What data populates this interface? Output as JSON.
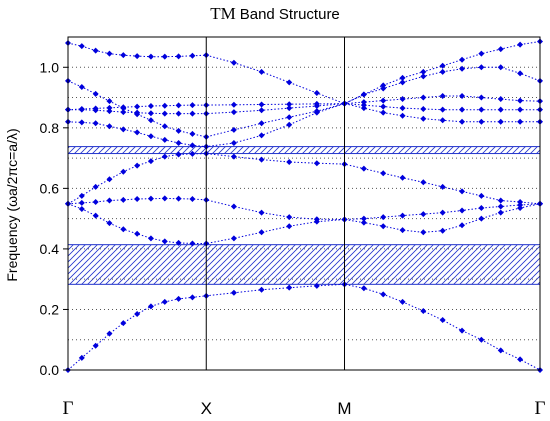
{
  "chart_data": {
    "type": "line",
    "title_prefix": "TM",
    "title": "Band Structure",
    "ylabel": "Frequency (ωa/2πc=a/λ)",
    "ylim": [
      0,
      1.1
    ],
    "yticks": [
      "0.0",
      "0.2",
      "0.4",
      "0.6",
      "0.8",
      "1.0"
    ],
    "ytick_values": [
      0,
      0.2,
      0.4,
      0.6,
      0.8,
      1.0
    ],
    "k_points": [
      "Γ",
      "X",
      "M",
      "Γ"
    ],
    "x_ticks": [
      0,
      10,
      20,
      34.14
    ],
    "grid": "dotted-horizontal",
    "band_color": "#0000dd",
    "gap_color": "#2233cc",
    "gaps": [
      {
        "lower": 0.283,
        "upper": 0.414
      },
      {
        "lower": 0.715,
        "upper": 0.738
      }
    ],
    "bands": [
      {
        "x": [
          0,
          1,
          2,
          3,
          4,
          5,
          6,
          7,
          8,
          9,
          10,
          12,
          14,
          16,
          18,
          20,
          21.4,
          22.8,
          24.2,
          25.7,
          27.1,
          28.5,
          29.9,
          31.3,
          32.7,
          34.14
        ],
        "y": [
          0,
          0.04,
          0.08,
          0.12,
          0.155,
          0.185,
          0.21,
          0.225,
          0.235,
          0.24,
          0.245,
          0.255,
          0.265,
          0.272,
          0.278,
          0.283,
          0.27,
          0.25,
          0.225,
          0.195,
          0.165,
          0.13,
          0.1,
          0.065,
          0.035,
          0
        ]
      },
      {
        "x": [
          0,
          1,
          2,
          3,
          4,
          5,
          6,
          7,
          8,
          9,
          10,
          12,
          14,
          16,
          18,
          20,
          21.4,
          22.8,
          24.2,
          25.7,
          27.1,
          28.5,
          29.9,
          31.3,
          32.7,
          34.14
        ],
        "y": [
          0.549,
          0.532,
          0.51,
          0.485,
          0.465,
          0.45,
          0.435,
          0.425,
          0.42,
          0.418,
          0.418,
          0.435,
          0.455,
          0.475,
          0.49,
          0.497,
          0.487,
          0.475,
          0.462,
          0.455,
          0.46,
          0.478,
          0.5,
          0.52,
          0.535,
          0.549
        ]
      },
      {
        "x": [
          0,
          1,
          2,
          3,
          4,
          5,
          6,
          7,
          8,
          9,
          10,
          12,
          14,
          16,
          18,
          20,
          21.4,
          22.8,
          24.2,
          25.7,
          27.1,
          28.5,
          29.9,
          31.3,
          32.7,
          34.14
        ],
        "y": [
          0.549,
          0.552,
          0.555,
          0.56,
          0.562,
          0.565,
          0.566,
          0.567,
          0.566,
          0.565,
          0.562,
          0.54,
          0.52,
          0.505,
          0.498,
          0.497,
          0.5,
          0.505,
          0.51,
          0.515,
          0.52,
          0.527,
          0.535,
          0.54,
          0.545,
          0.549
        ]
      },
      {
        "x": [
          0,
          1,
          2,
          3,
          4,
          5,
          6,
          7,
          8,
          9,
          10,
          12,
          14,
          16,
          18,
          20,
          21.4,
          22.8,
          24.2,
          25.7,
          27.1,
          28.5,
          29.9,
          31.3,
          32.7,
          34.14
        ],
        "y": [
          0.549,
          0.575,
          0.605,
          0.63,
          0.655,
          0.675,
          0.69,
          0.705,
          0.712,
          0.714,
          0.715,
          0.705,
          0.695,
          0.687,
          0.683,
          0.68,
          0.665,
          0.65,
          0.635,
          0.62,
          0.605,
          0.59,
          0.575,
          0.56,
          0.555,
          0.549
        ]
      },
      {
        "x": [
          0,
          1,
          2,
          3,
          4,
          5,
          6,
          7,
          8,
          9,
          10,
          12,
          14,
          16,
          18,
          20,
          21.4,
          22.8,
          24.2,
          25.7,
          27.1,
          28.5,
          29.9,
          31.3,
          32.7,
          34.14
        ],
        "y": [
          0.82,
          0.818,
          0.815,
          0.805,
          0.795,
          0.785,
          0.772,
          0.76,
          0.75,
          0.742,
          0.738,
          0.75,
          0.775,
          0.81,
          0.85,
          0.88,
          0.865,
          0.85,
          0.84,
          0.83,
          0.825,
          0.82,
          0.82,
          0.82,
          0.82,
          0.82
        ]
      },
      {
        "x": [
          0,
          1,
          2,
          3,
          4,
          5,
          6,
          7,
          8,
          9,
          10,
          12,
          14,
          16,
          18,
          20,
          21.4,
          22.8,
          24.2,
          25.7,
          27.1,
          28.5,
          29.9,
          31.3,
          32.7,
          34.14
        ],
        "y": [
          0.86,
          0.86,
          0.858,
          0.855,
          0.852,
          0.85,
          0.848,
          0.847,
          0.847,
          0.847,
          0.847,
          0.852,
          0.858,
          0.865,
          0.872,
          0.88,
          0.875,
          0.87,
          0.865,
          0.862,
          0.86,
          0.86,
          0.86,
          0.86,
          0.86,
          0.86
        ]
      },
      {
        "x": [
          0,
          1,
          2,
          3,
          4,
          5,
          6,
          7,
          8,
          9,
          10,
          12,
          14,
          16,
          18,
          20,
          21.4,
          22.8,
          24.2,
          25.7,
          27.1,
          28.5,
          29.9,
          31.3,
          32.7,
          34.14
        ],
        "y": [
          0.86,
          0.862,
          0.864,
          0.866,
          0.868,
          0.87,
          0.872,
          0.873,
          0.874,
          0.875,
          0.875,
          0.876,
          0.877,
          0.878,
          0.879,
          0.88,
          0.885,
          0.89,
          0.895,
          0.9,
          0.905,
          0.905,
          0.9,
          0.895,
          0.89,
          0.888
        ]
      },
      {
        "x": [
          0,
          1,
          2,
          3,
          4,
          5,
          6,
          7,
          8,
          9,
          10,
          12,
          14,
          16,
          18,
          20,
          21.4,
          22.8,
          24.2,
          25.7,
          27.1,
          28.5,
          29.9,
          31.3,
          32.7,
          34.14
        ],
        "y": [
          0.955,
          0.935,
          0.912,
          0.888,
          0.865,
          0.845,
          0.825,
          0.805,
          0.79,
          0.78,
          0.77,
          0.793,
          0.815,
          0.835,
          0.855,
          0.88,
          0.91,
          0.93,
          0.95,
          0.97,
          0.985,
          0.995,
          1.0,
          1.0,
          0.98,
          0.955
        ]
      },
      {
        "x": [
          0,
          1,
          2,
          3,
          4,
          5,
          6,
          7,
          8,
          9,
          10,
          12,
          14,
          16,
          18,
          20,
          21.4,
          22.8,
          24.2,
          25.7,
          27.1,
          28.5,
          29.9,
          31.3,
          32.7,
          34.14
        ],
        "y": [
          1.08,
          1.07,
          1.055,
          1.045,
          1.04,
          1.037,
          1.035,
          1.035,
          1.036,
          1.038,
          1.04,
          1.015,
          0.985,
          0.95,
          0.915,
          0.88,
          0.91,
          0.94,
          0.965,
          0.985,
          1.005,
          1.025,
          1.045,
          1.06,
          1.075,
          1.085
        ]
      }
    ]
  }
}
